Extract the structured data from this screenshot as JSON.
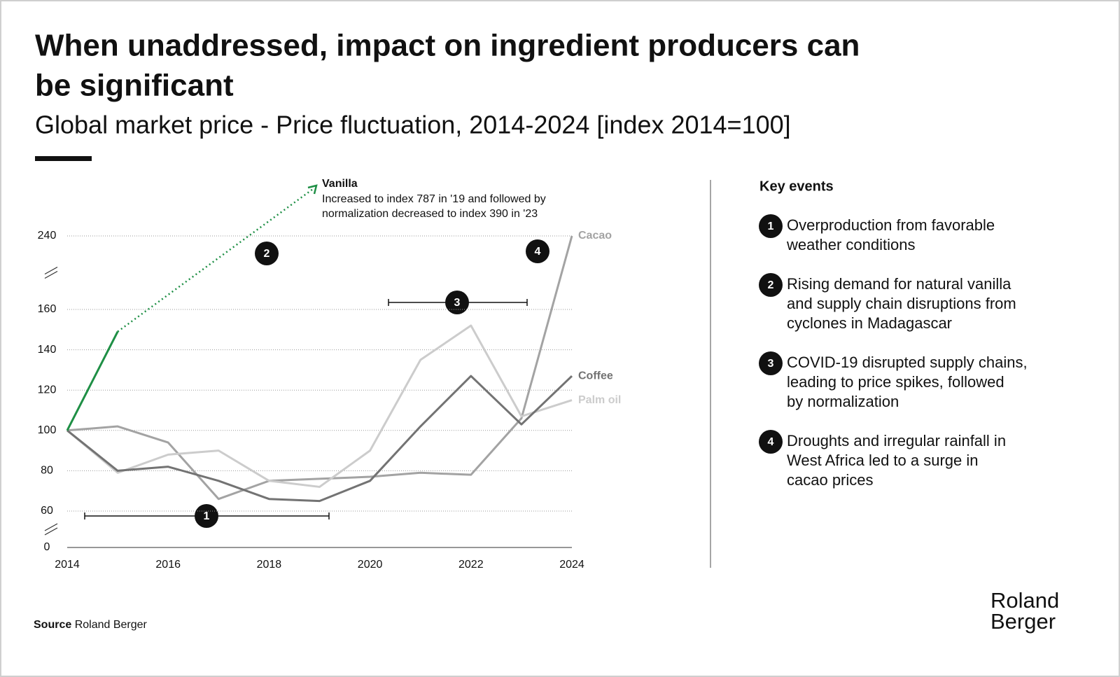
{
  "chart_data": {
    "type": "line",
    "title_lines": [
      "When unaddressed, impact on ingredient producers can",
      "be significant"
    ],
    "subtitle": "Global market price - Price fluctuation, 2014-2024 [index 2014=100]",
    "x": [
      2014,
      2015,
      2016,
      2017,
      2018,
      2019,
      2020,
      2021,
      2022,
      2023,
      2024
    ],
    "xlim": [
      2014,
      2024
    ],
    "xticks": [
      2014,
      2016,
      2018,
      2020,
      2022,
      2024
    ],
    "ylim": [
      0,
      240
    ],
    "yticks": [
      0,
      60,
      80,
      100,
      120,
      140,
      160,
      240
    ],
    "axis_breaks": [
      [
        0,
        60
      ],
      [
        160,
        240
      ]
    ],
    "grid": true,
    "series": [
      {
        "name": "Vanilla",
        "color": "#1e8f45",
        "values": [
          100,
          149,
          null,
          null,
          null,
          null,
          null,
          null,
          null,
          null,
          null
        ]
      },
      {
        "name": "Cacao",
        "color": "#a3a3a3",
        "values": [
          100,
          102,
          94,
          66,
          75,
          76,
          77,
          79,
          78,
          106,
          240
        ]
      },
      {
        "name": "Coffee",
        "color": "#737373",
        "values": [
          100,
          80,
          82,
          75,
          66,
          65,
          75,
          102,
          127,
          103,
          127
        ]
      },
      {
        "name": "Palm oil",
        "color": "#cccccc",
        "values": [
          100,
          79,
          88,
          90,
          75,
          72,
          90,
          135,
          152,
          107,
          115
        ]
      }
    ],
    "annotation_lines": [
      "Increased to index 787 in '19 and followed by",
      "normalization decreased to index 390 in '23"
    ],
    "key_events_title": "Key events",
    "key_events": [
      {
        "number": "1",
        "lines": [
          "Overproduction from favorable",
          "weather conditions"
        ]
      },
      {
        "number": "2",
        "lines": [
          "Rising demand for natural vanilla",
          "and supply chain disruptions from",
          "cyclones in Madagascar"
        ]
      },
      {
        "number": "3",
        "lines": [
          "COVID-19 disrupted supply chains,",
          "leading to price spikes, followed",
          "by normalization"
        ]
      },
      {
        "number": "4",
        "lines": [
          "Droughts and irregular rainfall in",
          "West Africa led to a surge in",
          "cacao prices"
        ]
      }
    ],
    "source_label": "Source",
    "source": "Roland Berger",
    "logo_lines": [
      "Roland",
      "Berger"
    ]
  }
}
